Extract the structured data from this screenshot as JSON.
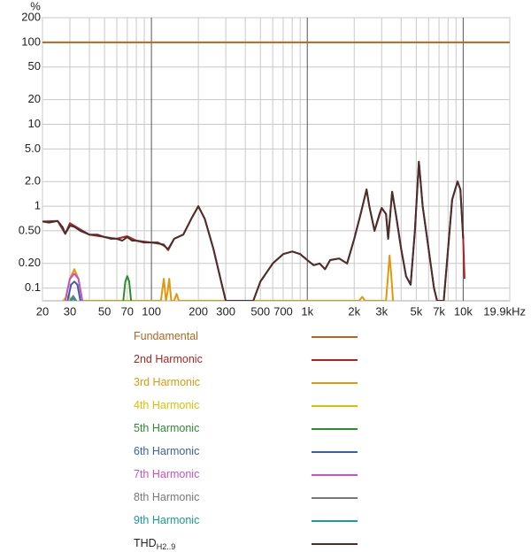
{
  "chart_data": {
    "type": "line",
    "ylabel": "%",
    "log_x": true,
    "log_y": true,
    "grid": true,
    "xlim": [
      20,
      19900
    ],
    "ylim": [
      0.07,
      200
    ],
    "xticks": [
      20,
      30,
      50,
      70,
      100,
      200,
      300,
      500,
      700,
      {
        "value": 1000,
        "label": "1k"
      },
      {
        "value": 2000,
        "label": "2k"
      },
      {
        "value": 3000,
        "label": "3k"
      },
      {
        "value": 5000,
        "label": "5k"
      },
      {
        "value": 7000,
        "label": "7k"
      },
      {
        "value": 10000,
        "label": "10k"
      },
      {
        "value": 19900,
        "label": "19.9kHz"
      }
    ],
    "xminorticks": [
      40,
      60,
      80,
      90,
      400,
      600,
      800,
      900,
      4000,
      6000,
      8000,
      9000
    ],
    "yticks": [
      200,
      100,
      50,
      20,
      10,
      {
        "value": 5,
        "label": "5.0"
      },
      {
        "value": 2,
        "label": "2.0"
      },
      1,
      {
        "value": 0.5,
        "label": "0.50"
      },
      {
        "value": 0.2,
        "label": "0.20"
      },
      0.1
    ],
    "series": [
      {
        "name": "Fundamental",
        "color": "#b5651d",
        "x": [
          20,
          19900
        ],
        "values": [
          100,
          100
        ]
      },
      {
        "name": "2nd Harmonic",
        "color": "#b22222",
        "x": [
          20,
          25,
          28,
          30,
          35,
          40,
          50,
          60,
          70,
          80,
          100,
          120,
          128,
          140,
          160,
          180,
          200,
          220,
          250,
          280,
          300,
          450,
          500,
          600,
          700,
          800,
          900,
          1000,
          1100,
          1200,
          1300,
          1400,
          1600,
          1800,
          2000,
          2200,
          2400,
          2500,
          2700,
          3000,
          3200,
          3300,
          3500,
          3700,
          4000,
          4300,
          4600,
          4900,
          5200,
          5500,
          6000,
          6500,
          6800,
          7500,
          8000,
          8500,
          9200,
          9600,
          10000,
          10200
        ],
        "values": [
          0.65,
          0.66,
          0.46,
          0.62,
          0.52,
          0.45,
          0.42,
          0.4,
          0.43,
          0.38,
          0.36,
          0.34,
          0.29,
          0.4,
          0.45,
          0.7,
          1.0,
          0.7,
          0.3,
          0.12,
          0.07,
          0.07,
          0.12,
          0.2,
          0.26,
          0.28,
          0.26,
          0.22,
          0.19,
          0.2,
          0.17,
          0.22,
          0.23,
          0.2,
          0.4,
          0.8,
          1.6,
          1.0,
          0.5,
          0.95,
          0.8,
          0.4,
          1.5,
          0.8,
          0.3,
          0.14,
          0.11,
          0.5,
          3.5,
          1.0,
          0.3,
          0.1,
          0.07,
          0.07,
          0.3,
          1.2,
          2.0,
          1.6,
          0.4,
          0.13
        ]
      },
      {
        "name": "3rd Harmonic",
        "color": "#e0980f",
        "x": [
          28,
          30,
          32,
          34,
          36,
          115,
          120,
          124,
          127,
          130,
          134,
          140,
          145,
          150,
          2150,
          2250,
          2350,
          3200,
          3300,
          3370,
          3450,
          3550
        ],
        "values": [
          0.07,
          0.13,
          0.17,
          0.13,
          0.07,
          0.07,
          0.13,
          0.07,
          0.09,
          0.13,
          0.07,
          0.07,
          0.085,
          0.07,
          0.07,
          0.078,
          0.07,
          0.07,
          0.15,
          0.25,
          0.15,
          0.07
        ]
      },
      {
        "name": "4th Harmonic",
        "color": "#d4c400",
        "x": [
          27,
          29,
          31
        ],
        "values": [
          0.07,
          0.08,
          0.07
        ]
      },
      {
        "name": "5th Harmonic",
        "color": "#2e8b2e",
        "x": [
          66,
          68,
          70,
          72,
          74
        ],
        "values": [
          0.07,
          0.12,
          0.14,
          0.12,
          0.07
        ]
      },
      {
        "name": "6th Harmonic",
        "color": "#3b5ea8",
        "x": [
          29,
          30.5,
          32,
          33.5,
          35
        ],
        "values": [
          0.07,
          0.11,
          0.12,
          0.11,
          0.07
        ]
      },
      {
        "name": "7th Harmonic",
        "color": "#cc4fc4",
        "x": [
          28,
          30,
          32,
          34,
          36
        ],
        "values": [
          0.07,
          0.13,
          0.15,
          0.13,
          0.07
        ]
      },
      {
        "name": "8th Harmonic",
        "color": "#777777",
        "x": [
          30,
          31.5,
          33
        ],
        "values": [
          0.07,
          0.08,
          0.07
        ]
      },
      {
        "name": "9th Harmonic",
        "color": "#1a9a9a",
        "x": [
          30.5,
          31.5,
          32.5
        ],
        "values": [
          0.07,
          0.075,
          0.07
        ]
      },
      {
        "name": "THD",
        "subscript": "H2..9",
        "color": "#4a2e2b",
        "x": [
          20,
          22,
          25,
          27,
          28,
          30,
          32,
          35,
          40,
          45,
          50,
          55,
          60,
          65,
          70,
          75,
          80,
          90,
          100,
          110,
          120,
          128,
          140,
          160,
          180,
          200,
          220,
          250,
          280,
          300,
          450,
          500,
          600,
          700,
          800,
          900,
          1000,
          1100,
          1200,
          1300,
          1400,
          1600,
          1800,
          2000,
          2200,
          2400,
          2500,
          2700,
          2900,
          3000,
          3200,
          3300,
          3500,
          3700,
          4000,
          4300,
          4600,
          4900,
          5200,
          5500,
          6000,
          6500,
          6800,
          7500,
          8000,
          8500,
          9200,
          9600,
          10000
        ],
        "values": [
          0.65,
          0.63,
          0.66,
          0.55,
          0.46,
          0.58,
          0.56,
          0.5,
          0.45,
          0.45,
          0.42,
          0.4,
          0.4,
          0.38,
          0.42,
          0.38,
          0.38,
          0.36,
          0.36,
          0.36,
          0.33,
          0.3,
          0.4,
          0.45,
          0.7,
          1.0,
          0.7,
          0.3,
          0.12,
          0.07,
          0.07,
          0.12,
          0.2,
          0.26,
          0.28,
          0.26,
          0.22,
          0.19,
          0.2,
          0.17,
          0.22,
          0.23,
          0.2,
          0.4,
          0.8,
          1.6,
          1.0,
          0.5,
          0.8,
          0.95,
          0.8,
          0.4,
          1.5,
          0.8,
          0.3,
          0.14,
          0.11,
          0.5,
          3.5,
          1.0,
          0.3,
          0.1,
          0.07,
          0.07,
          0.3,
          1.2,
          2.0,
          1.6,
          0.4
        ]
      }
    ]
  }
}
